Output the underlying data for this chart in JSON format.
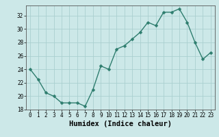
{
  "x": [
    0,
    1,
    2,
    3,
    4,
    5,
    6,
    7,
    8,
    9,
    10,
    11,
    12,
    13,
    14,
    15,
    16,
    17,
    18,
    19,
    20,
    21,
    22,
    23
  ],
  "y": [
    24,
    22.5,
    20.5,
    20,
    19,
    19,
    19,
    18.5,
    21,
    24.5,
    24,
    27,
    27.5,
    28.5,
    29.5,
    31,
    30.5,
    32.5,
    32.5,
    33,
    31,
    28,
    25.5,
    26.5
  ],
  "line_color": "#2e7d6e",
  "marker_color": "#2e7d6e",
  "bg_color": "#cce8e8",
  "grid_color": "#aacfcf",
  "xlabel": "Humidex (Indice chaleur)",
  "ylim": [
    18,
    33.5
  ],
  "xlim": [
    -0.5,
    23.5
  ],
  "yticks": [
    18,
    20,
    22,
    24,
    26,
    28,
    30,
    32
  ],
  "xticks": [
    0,
    1,
    2,
    3,
    4,
    5,
    6,
    7,
    8,
    9,
    10,
    11,
    12,
    13,
    14,
    15,
    16,
    17,
    18,
    19,
    20,
    21,
    22,
    23
  ],
  "tick_label_fontsize": 5.5,
  "xlabel_fontsize": 7.5,
  "linewidth": 1.0,
  "markersize": 2.5
}
